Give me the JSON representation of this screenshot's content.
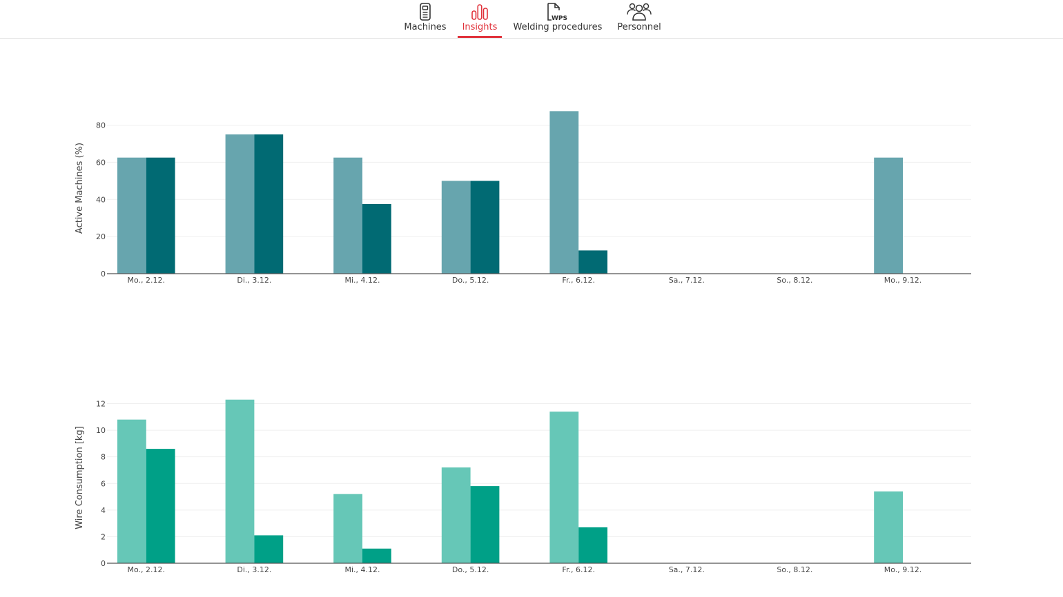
{
  "nav": {
    "items": [
      {
        "label": "Machines",
        "icon": "machine-icon",
        "active": false
      },
      {
        "label": "Insights",
        "icon": "bar-chart-icon",
        "active": true
      },
      {
        "label": "Welding procedures",
        "icon": "wps-document-icon",
        "active": false
      },
      {
        "label": "Personnel",
        "icon": "people-icon",
        "active": false
      }
    ],
    "active_color": "#e0313a",
    "wps_icon_text": "WPS"
  },
  "chart_data": [
    {
      "type": "bar",
      "ylabel": "Active Machines (%)",
      "xlabel": "",
      "categories": [
        "Mo., 2.12.",
        "Di., 3.12.",
        "Mi., 4.12.",
        "Do., 5.12.",
        "Fr., 6.12.",
        "Sa., 7.12.",
        "So., 8.12.",
        "Mo., 9.12."
      ],
      "yticks": [
        0,
        20,
        40,
        60,
        80
      ],
      "ylim": [
        0,
        92
      ],
      "grid": true,
      "series": [
        {
          "values": [
            62.5,
            75,
            62.5,
            50,
            87.5,
            0,
            0,
            62.5
          ],
          "color": "#67a5ae"
        },
        {
          "values": [
            62.5,
            75,
            37.5,
            50,
            12.5,
            0,
            0,
            0
          ],
          "color": "#016a73"
        }
      ]
    },
    {
      "type": "bar",
      "ylabel": "Wire Consumption [kg]",
      "xlabel": "",
      "categories": [
        "Mo., 2.12.",
        "Di., 3.12.",
        "Mi., 4.12.",
        "Do., 5.12.",
        "Fr., 6.12.",
        "Sa., 7.12.",
        "So., 8.12.",
        "Mo., 9.12."
      ],
      "yticks": [
        0,
        2,
        4,
        6,
        8,
        10,
        12
      ],
      "ylim": [
        0,
        13
      ],
      "grid": true,
      "series": [
        {
          "values": [
            10.8,
            12.3,
            5.2,
            7.2,
            11.4,
            0,
            0,
            5.4
          ],
          "color": "#66c7b7"
        },
        {
          "values": [
            8.6,
            2.1,
            1.1,
            5.8,
            2.7,
            0,
            0,
            0
          ],
          "color": "#00a087"
        }
      ]
    }
  ]
}
